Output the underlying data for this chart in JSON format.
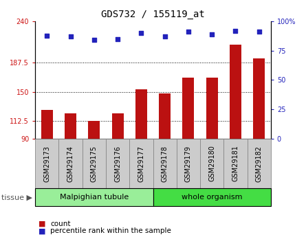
{
  "title": "GDS732 / 155119_at",
  "samples": [
    "GSM29173",
    "GSM29174",
    "GSM29175",
    "GSM29176",
    "GSM29177",
    "GSM29178",
    "GSM29179",
    "GSM29180",
    "GSM29181",
    "GSM29182"
  ],
  "counts": [
    127,
    122,
    113,
    122,
    153,
    148,
    168,
    168,
    210,
    193
  ],
  "percentiles": [
    88,
    87,
    84,
    85,
    90,
    87,
    91,
    89,
    92,
    91
  ],
  "ylim_left": [
    90,
    240
  ],
  "ylim_right": [
    0,
    100
  ],
  "yticks_left": [
    90,
    112.5,
    150,
    187.5,
    240
  ],
  "yticks_right": [
    0,
    25,
    50,
    75,
    100
  ],
  "bar_color": "#bb1111",
  "dot_color": "#2222bb",
  "tissue_groups": [
    {
      "label": "Malpighian tubule",
      "start": 0,
      "end": 5,
      "color": "#99ee99"
    },
    {
      "label": "whole organism",
      "start": 5,
      "end": 10,
      "color": "#44dd44"
    }
  ],
  "tissue_label": "tissue",
  "legend_bar_label": "count",
  "legend_dot_label": "percentile rank within the sample",
  "grid_color": "black",
  "bar_width": 0.5,
  "tick_label_fontsize": 7,
  "title_fontsize": 10,
  "tissue_label_fontsize": 8,
  "ylabel_right_color": "#0000cc",
  "ylabel_left_color": "#cc1111",
  "xticklabel_bg_color": "#cccccc",
  "xticklabel_border_color": "#888888"
}
